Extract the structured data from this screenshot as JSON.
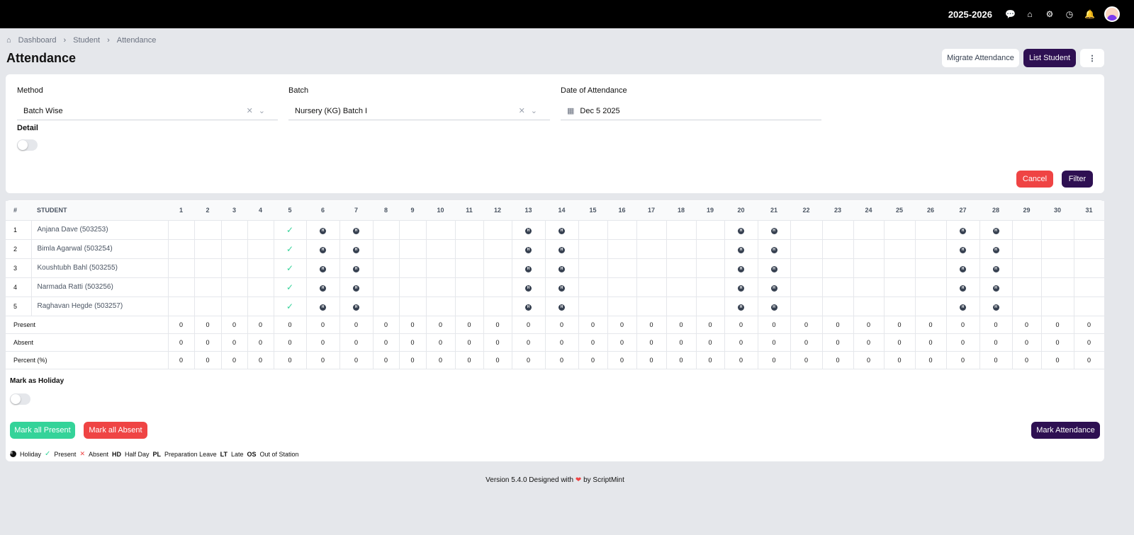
{
  "topbar": {
    "session": "2025-2026",
    "icons": [
      "chat-icon",
      "school-icon",
      "gear-icon",
      "clock-icon",
      "bell-icon"
    ]
  },
  "breadcrumb": [
    "Dashboard",
    "Student",
    "Attendance"
  ],
  "title": "Attendance",
  "header_buttons": {
    "migrate": "Migrate Attendance",
    "list": "List Student",
    "more": "⋮"
  },
  "filter": {
    "method_label": "Method",
    "method_value": "Batch Wise",
    "batch_label": "Batch",
    "batch_value": "Nursery (KG) Batch I",
    "date_label": "Date of Attendance",
    "date_value": "Dec 5 2025",
    "detail_label": "Detail",
    "detail_on": false,
    "cancel": "Cancel",
    "filter": "Filter"
  },
  "table": {
    "hash": "#",
    "student": "STUDENT",
    "days": [
      1,
      2,
      3,
      4,
      5,
      6,
      7,
      8,
      9,
      10,
      11,
      12,
      13,
      14,
      15,
      16,
      17,
      18,
      19,
      20,
      21,
      22,
      23,
      24,
      25,
      26,
      27,
      28,
      29,
      30,
      31
    ],
    "holidays": [
      6,
      7,
      13,
      14,
      20,
      21,
      27,
      28
    ],
    "present_days": [
      5
    ],
    "rows": [
      {
        "n": "1",
        "name": "Anjana Dave (503253)"
      },
      {
        "n": "2",
        "name": "Bimla Agarwal (503254)"
      },
      {
        "n": "3",
        "name": "Koushtubh Bahl (503255)"
      },
      {
        "n": "4",
        "name": "Narmada Ratti (503256)"
      },
      {
        "n": "5",
        "name": "Raghavan Hegde (503257)"
      }
    ],
    "summary": [
      {
        "label": "Present",
        "value": "0"
      },
      {
        "label": "Absent",
        "value": "0"
      },
      {
        "label": "Percent (%)",
        "value": "0"
      }
    ]
  },
  "holiday_label": "Mark as Holiday",
  "holiday_on": false,
  "actions": {
    "all_present": "Mark all Present",
    "all_absent": "Mark all Absent",
    "mark": "Mark Attendance"
  },
  "legend": [
    {
      "sym": "H",
      "text": "Holiday"
    },
    {
      "sym": "✓",
      "text": "Present"
    },
    {
      "sym": "✕",
      "text": "Absent"
    },
    {
      "sym": "HD",
      "text": "Half Day"
    },
    {
      "sym": "PL",
      "text": "Preparation Leave"
    },
    {
      "sym": "LT",
      "text": "Late"
    },
    {
      "sym": "OS",
      "text": "Out of Station"
    }
  ],
  "footer": {
    "pre": "Version 5.4.0  Designed with",
    "post": "by ScriptMint"
  },
  "colors": {
    "primary": "#2e1052",
    "danger": "#ef4444",
    "success": "#34d399"
  }
}
